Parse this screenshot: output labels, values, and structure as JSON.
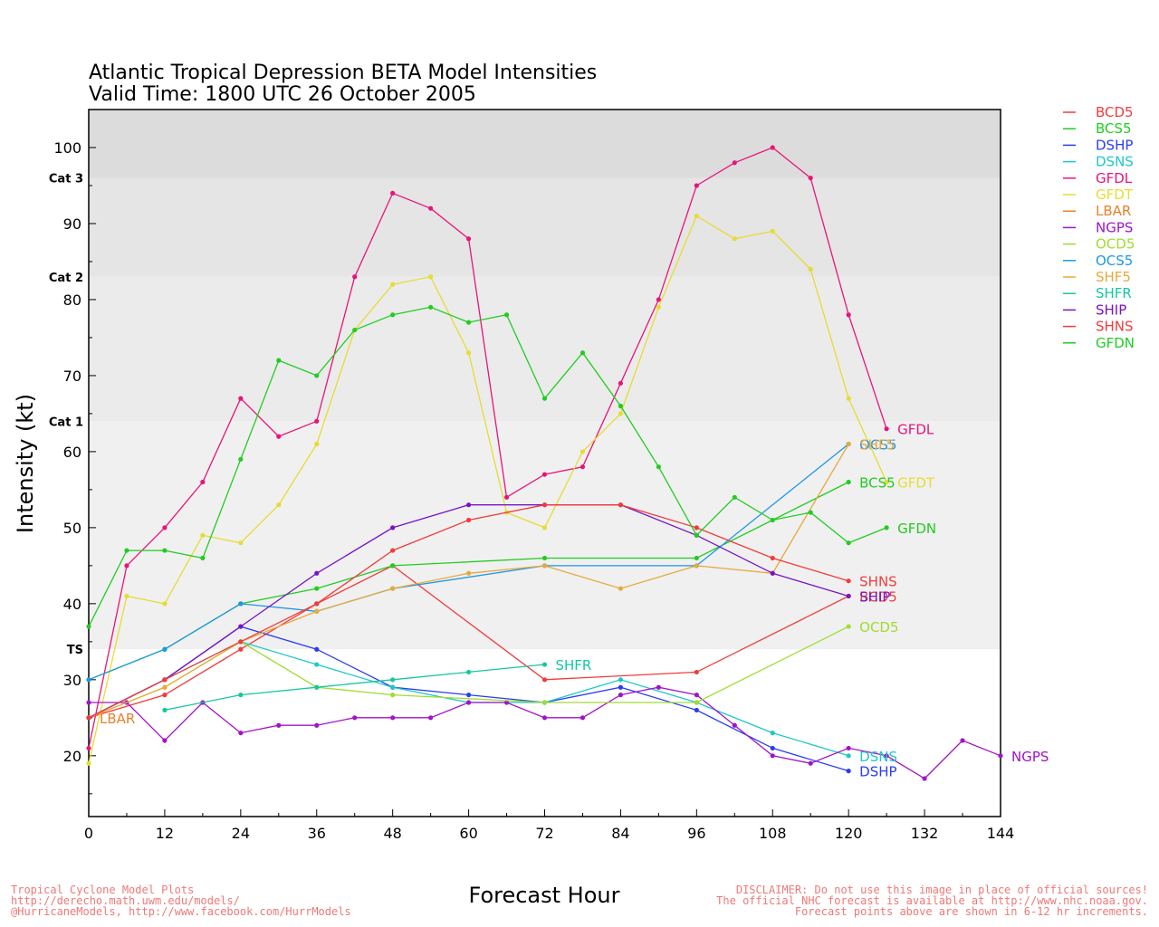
{
  "chart_data": {
    "type": "line",
    "title": "Atlantic Tropical Depression BETA Model Intensities",
    "subtitle": "Valid Time: 1800 UTC 26 October 2005",
    "xlabel": "Forecast Hour",
    "ylabel": "Intensity (kt)",
    "xlim": [
      0,
      144
    ],
    "ylim": [
      12,
      105
    ],
    "xticks": [
      0,
      12,
      24,
      36,
      48,
      60,
      72,
      84,
      96,
      108,
      120,
      132,
      144
    ],
    "yticks": [
      20,
      30,
      40,
      50,
      60,
      70,
      80,
      90,
      100
    ],
    "grid": false,
    "legend_position": "right",
    "bands": [
      {
        "label": "TS",
        "from": 34,
        "to": 64,
        "color": "#f0f0f0"
      },
      {
        "label": "Cat 1",
        "from": 64,
        "to": 83,
        "color": "#ebebeb"
      },
      {
        "label": "Cat 2",
        "from": 83,
        "to": 96,
        "color": "#e5e5e5"
      },
      {
        "label": "Cat 3",
        "from": 96,
        "to": 105,
        "color": "#dcdcdc"
      }
    ],
    "series": [
      {
        "name": "BCD5",
        "color": "#f03c3c",
        "points": [
          [
            0,
            25
          ],
          [
            12,
            28
          ],
          [
            24,
            34
          ],
          [
            36,
            40
          ],
          [
            48,
            45
          ],
          [
            72,
            30
          ],
          [
            96,
            31
          ],
          [
            120,
            41
          ]
        ],
        "label_at": [
          120,
          41
        ],
        "show_label": true
      },
      {
        "name": "BCS5",
        "color": "#22cc22",
        "points": [
          [
            0,
            30
          ],
          [
            12,
            34
          ],
          [
            24,
            40
          ],
          [
            36,
            42
          ],
          [
            48,
            45
          ],
          [
            72,
            46
          ],
          [
            96,
            46
          ],
          [
            120,
            56
          ]
        ],
        "label_at": [
          120,
          56
        ],
        "show_label": true
      },
      {
        "name": "DSHP",
        "color": "#2a3cf0",
        "points": [
          [
            0,
            25
          ],
          [
            12,
            30
          ],
          [
            24,
            37
          ],
          [
            36,
            34
          ],
          [
            48,
            29
          ],
          [
            60,
            28
          ],
          [
            72,
            27
          ],
          [
            84,
            29
          ],
          [
            96,
            26
          ],
          [
            108,
            21
          ],
          [
            120,
            18
          ]
        ],
        "label_at": [
          120,
          18
        ],
        "show_label": true
      },
      {
        "name": "DSNS",
        "color": "#1ec8c8",
        "points": [
          [
            0,
            25
          ],
          [
            12,
            30
          ],
          [
            24,
            35
          ],
          [
            36,
            32
          ],
          [
            48,
            29
          ],
          [
            60,
            27
          ],
          [
            72,
            27
          ],
          [
            84,
            30
          ],
          [
            96,
            27
          ],
          [
            108,
            23
          ],
          [
            120,
            20
          ]
        ],
        "label_at": [
          120,
          20
        ],
        "show_label": true
      },
      {
        "name": "GFDL",
        "color": "#e8147a",
        "points": [
          [
            0,
            21
          ],
          [
            6,
            45
          ],
          [
            12,
            50
          ],
          [
            18,
            56
          ],
          [
            24,
            67
          ],
          [
            30,
            62
          ],
          [
            36,
            64
          ],
          [
            42,
            83
          ],
          [
            48,
            94
          ],
          [
            54,
            92
          ],
          [
            60,
            88
          ],
          [
            66,
            54
          ],
          [
            72,
            57
          ],
          [
            78,
            58
          ],
          [
            84,
            69
          ],
          [
            90,
            80
          ],
          [
            96,
            95
          ],
          [
            102,
            98
          ],
          [
            108,
            100
          ],
          [
            114,
            96
          ],
          [
            120,
            78
          ],
          [
            126,
            63
          ]
        ],
        "label_at": [
          126,
          63
        ],
        "show_label": true
      },
      {
        "name": "GFDT",
        "color": "#e6dc32",
        "points": [
          [
            0,
            19
          ],
          [
            6,
            41
          ],
          [
            12,
            40
          ],
          [
            18,
            49
          ],
          [
            24,
            48
          ],
          [
            30,
            53
          ],
          [
            36,
            61
          ],
          [
            42,
            76
          ],
          [
            48,
            82
          ],
          [
            54,
            83
          ],
          [
            60,
            73
          ],
          [
            66,
            52
          ],
          [
            72,
            50
          ],
          [
            78,
            60
          ],
          [
            84,
            65
          ],
          [
            90,
            79
          ],
          [
            96,
            91
          ],
          [
            102,
            88
          ],
          [
            108,
            89
          ],
          [
            114,
            84
          ],
          [
            120,
            67
          ],
          [
            126,
            56
          ]
        ],
        "label_at": [
          126,
          56
        ],
        "show_label": true
      },
      {
        "name": "LBAR",
        "color": "#e88228",
        "points": [
          [
            0,
            25
          ]
        ],
        "label_at": [
          0,
          25
        ],
        "show_label": true
      },
      {
        "name": "NGPS",
        "color": "#a014c8",
        "points": [
          [
            0,
            27
          ],
          [
            6,
            27
          ],
          [
            12,
            22
          ],
          [
            18,
            27
          ],
          [
            24,
            23
          ],
          [
            30,
            24
          ],
          [
            36,
            24
          ],
          [
            42,
            25
          ],
          [
            48,
            25
          ],
          [
            54,
            25
          ],
          [
            60,
            27
          ],
          [
            66,
            27
          ],
          [
            72,
            25
          ],
          [
            78,
            25
          ],
          [
            84,
            28
          ],
          [
            90,
            29
          ],
          [
            96,
            28
          ],
          [
            102,
            24
          ],
          [
            108,
            20
          ],
          [
            114,
            19
          ],
          [
            120,
            21
          ],
          [
            126,
            20
          ],
          [
            132,
            17
          ],
          [
            138,
            22
          ],
          [
            144,
            20
          ]
        ],
        "label_at": [
          144,
          20
        ],
        "show_label": true
      },
      {
        "name": "OCD5",
        "color": "#a0dc32",
        "points": [
          [
            0,
            25
          ],
          [
            12,
            29
          ],
          [
            24,
            35
          ],
          [
            36,
            29
          ],
          [
            48,
            28
          ],
          [
            72,
            27
          ],
          [
            96,
            27
          ],
          [
            120,
            37
          ]
        ],
        "label_at": [
          120,
          37
        ],
        "show_label": true
      },
      {
        "name": "OCS5",
        "color": "#1e96e6",
        "points": [
          [
            0,
            30
          ],
          [
            12,
            34
          ],
          [
            24,
            40
          ],
          [
            36,
            39
          ],
          [
            48,
            42
          ],
          [
            72,
            45
          ],
          [
            96,
            45
          ],
          [
            120,
            61
          ]
        ],
        "label_at": [
          120,
          61
        ],
        "show_label": true
      },
      {
        "name": "SHF5",
        "color": "#e6aa3c",
        "points": [
          [
            0,
            25
          ],
          [
            12,
            29
          ],
          [
            24,
            35
          ],
          [
            36,
            39
          ],
          [
            48,
            42
          ],
          [
            60,
            44
          ],
          [
            72,
            45
          ],
          [
            84,
            42
          ],
          [
            96,
            45
          ],
          [
            108,
            44
          ],
          [
            120,
            61
          ]
        ],
        "label_at": [
          120,
          61
        ],
        "show_label": true
      },
      {
        "name": "SHFR",
        "color": "#14c8a0",
        "points": [
          [
            12,
            26
          ],
          [
            24,
            28
          ],
          [
            36,
            29
          ],
          [
            48,
            30
          ],
          [
            60,
            31
          ],
          [
            72,
            32
          ]
        ],
        "label_at": [
          72,
          32
        ],
        "show_label": true
      },
      {
        "name": "SHIP",
        "color": "#7814c8",
        "points": [
          [
            0,
            25
          ],
          [
            12,
            30
          ],
          [
            24,
            37
          ],
          [
            36,
            44
          ],
          [
            48,
            50
          ],
          [
            60,
            53
          ],
          [
            72,
            53
          ],
          [
            84,
            53
          ],
          [
            96,
            49
          ],
          [
            108,
            44
          ],
          [
            120,
            41
          ]
        ],
        "label_at": [
          120,
          41
        ],
        "show_label": true
      },
      {
        "name": "SHNS",
        "color": "#f03c3c",
        "points": [
          [
            0,
            25
          ],
          [
            12,
            30
          ],
          [
            24,
            35
          ],
          [
            36,
            40
          ],
          [
            48,
            47
          ],
          [
            60,
            51
          ],
          [
            72,
            53
          ],
          [
            84,
            53
          ],
          [
            96,
            50
          ],
          [
            108,
            46
          ],
          [
            120,
            43
          ]
        ],
        "label_at": [
          120,
          43
        ],
        "show_label": true
      },
      {
        "name": "GFDN",
        "color": "#22cc22",
        "points": [
          [
            0,
            37
          ],
          [
            6,
            47
          ],
          [
            12,
            47
          ],
          [
            18,
            46
          ],
          [
            24,
            59
          ],
          [
            30,
            72
          ],
          [
            36,
            70
          ],
          [
            42,
            76
          ],
          [
            48,
            78
          ],
          [
            54,
            79
          ],
          [
            60,
            77
          ],
          [
            66,
            78
          ],
          [
            72,
            67
          ],
          [
            78,
            73
          ],
          [
            84,
            66
          ],
          [
            90,
            58
          ],
          [
            96,
            49
          ],
          [
            102,
            54
          ],
          [
            108,
            51
          ],
          [
            114,
            52
          ],
          [
            120,
            48
          ],
          [
            126,
            50
          ]
        ],
        "label_at": [
          126,
          50
        ],
        "show_label": true
      }
    ]
  },
  "footer": {
    "left": [
      "Tropical Cyclone Model Plots",
      "http://derecho.math.uwm.edu/models/",
      "@HurricaneModels, http://www.facebook.com/HurrModels"
    ],
    "right": [
      "DISCLAIMER: Do not use this image in place of official sources!",
      "The official NHC forecast is available at http://www.nhc.noaa.gov.",
      "Forecast points above are shown in 6-12 hr increments."
    ]
  }
}
